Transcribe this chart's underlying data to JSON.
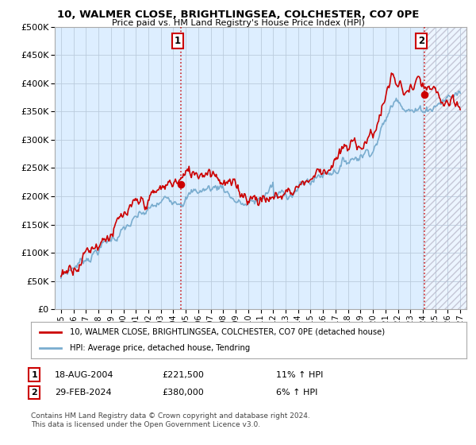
{
  "title": "10, WALMER CLOSE, BRIGHTLINGSEA, COLCHESTER, CO7 0PE",
  "subtitle": "Price paid vs. HM Land Registry's House Price Index (HPI)",
  "legend_line1": "10, WALMER CLOSE, BRIGHTLINGSEA, COLCHESTER, CO7 0PE (detached house)",
  "legend_line2": "HPI: Average price, detached house, Tendring",
  "footer": "Contains HM Land Registry data © Crown copyright and database right 2024.\nThis data is licensed under the Open Government Licence v3.0.",
  "annotation1_label": "1",
  "annotation1_date": "18-AUG-2004",
  "annotation1_price": "£221,500",
  "annotation1_hpi": "11% ↑ HPI",
  "annotation2_label": "2",
  "annotation2_date": "29-FEB-2024",
  "annotation2_price": "£380,000",
  "annotation2_hpi": "6% ↑ HPI",
  "sale1_x": 2004.63,
  "sale1_y": 221500,
  "sale2_x": 2024.16,
  "sale2_y": 380000,
  "red_color": "#cc0000",
  "blue_color": "#7aadcf",
  "chart_bg_color": "#ddeeff",
  "background_color": "#ffffff",
  "grid_color": "#bbccdd",
  "ylim": [
    0,
    500000
  ],
  "xlim": [
    1994.5,
    2027.5
  ],
  "yticks": [
    0,
    50000,
    100000,
    150000,
    200000,
    250000,
    300000,
    350000,
    400000,
    450000,
    500000
  ],
  "xticks": [
    1995,
    1996,
    1997,
    1998,
    1999,
    2000,
    2001,
    2002,
    2003,
    2004,
    2005,
    2006,
    2007,
    2008,
    2009,
    2010,
    2011,
    2012,
    2013,
    2014,
    2015,
    2016,
    2017,
    2018,
    2019,
    2020,
    2021,
    2022,
    2023,
    2024,
    2025,
    2026,
    2027
  ]
}
